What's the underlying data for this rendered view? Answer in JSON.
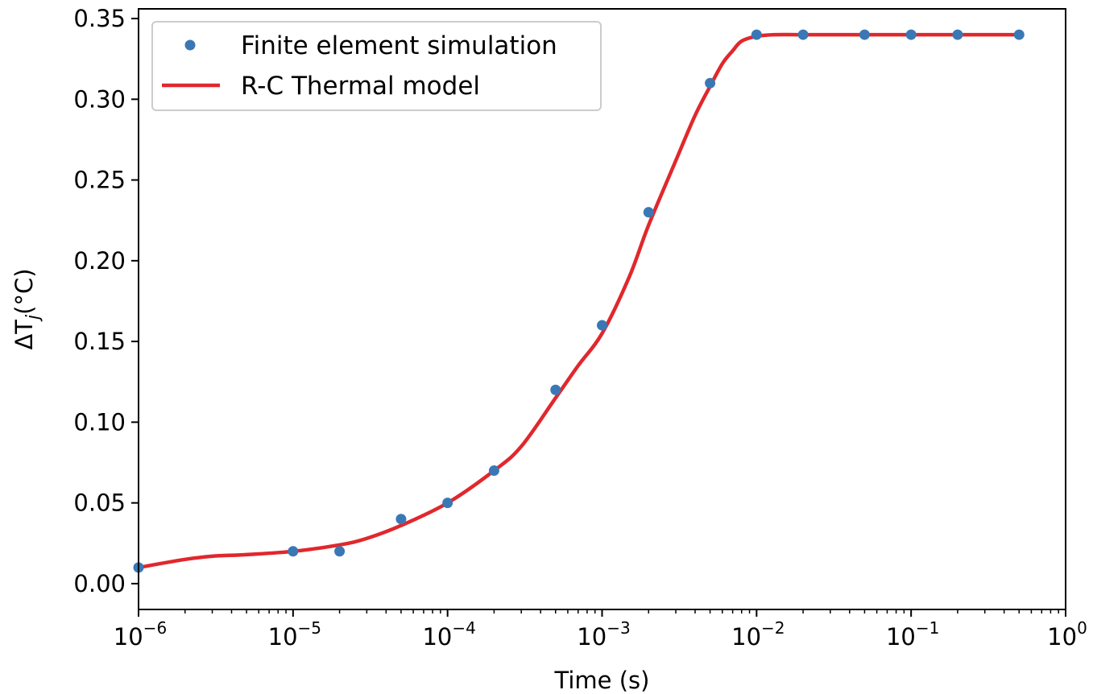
{
  "chart_data": {
    "type": "scatter",
    "title": "",
    "xlabel": "Time (s)",
    "ylabel": "ΔTj(°C)",
    "xscale": "log",
    "xlim": [
      1e-06,
      1
    ],
    "ylim": [
      -0.016,
      0.356
    ],
    "grid": false,
    "legend_position": "top-left",
    "x_ticks": [
      {
        "value": 1e-06,
        "base": "10",
        "exp": "−6"
      },
      {
        "value": 1e-05,
        "base": "10",
        "exp": "−5"
      },
      {
        "value": 0.0001,
        "base": "10",
        "exp": "−4"
      },
      {
        "value": 0.001,
        "base": "10",
        "exp": "−3"
      },
      {
        "value": 0.01,
        "base": "10",
        "exp": "−2"
      },
      {
        "value": 0.1,
        "base": "10",
        "exp": "−1"
      },
      {
        "value": 1,
        "base": "10",
        "exp": "0"
      }
    ],
    "y_ticks": [
      {
        "value": 0.0,
        "label": "0.00"
      },
      {
        "value": 0.05,
        "label": "0.05"
      },
      {
        "value": 0.1,
        "label": "0.10"
      },
      {
        "value": 0.15,
        "label": "0.15"
      },
      {
        "value": 0.2,
        "label": "0.20"
      },
      {
        "value": 0.25,
        "label": "0.25"
      },
      {
        "value": 0.3,
        "label": "0.30"
      },
      {
        "value": 0.35,
        "label": "0.35"
      }
    ],
    "series": [
      {
        "name": "Finite element simulation",
        "kind": "scatter",
        "color": "#3a78b5",
        "x": [
          1e-06,
          1e-05,
          2e-05,
          5e-05,
          0.0001,
          0.0002,
          0.0005,
          0.001,
          0.002,
          0.005,
          0.01,
          0.02,
          0.05,
          0.1,
          0.2,
          0.5
        ],
        "y": [
          0.01,
          0.02,
          0.02,
          0.04,
          0.05,
          0.07,
          0.12,
          0.16,
          0.23,
          0.31,
          0.34,
          0.34,
          0.34,
          0.34,
          0.34,
          0.34
        ]
      },
      {
        "name": "R-C Thermal model",
        "kind": "line",
        "color": "#e0282d",
        "x": [
          1e-06,
          2e-06,
          3e-06,
          5e-06,
          1e-05,
          2e-05,
          3e-05,
          5e-05,
          0.0001,
          0.0002,
          0.0003,
          0.0005,
          0.0007,
          0.001,
          0.0015,
          0.002,
          0.003,
          0.004,
          0.005,
          0.006,
          0.007,
          0.008,
          0.01,
          0.013,
          0.02,
          0.05,
          0.1,
          0.2,
          0.5
        ],
        "y": [
          0.01,
          0.015,
          0.017,
          0.018,
          0.02,
          0.024,
          0.028,
          0.036,
          0.05,
          0.07,
          0.085,
          0.115,
          0.135,
          0.155,
          0.19,
          0.222,
          0.262,
          0.29,
          0.308,
          0.322,
          0.33,
          0.336,
          0.339,
          0.34,
          0.34,
          0.34,
          0.34,
          0.34,
          0.34
        ]
      }
    ]
  }
}
